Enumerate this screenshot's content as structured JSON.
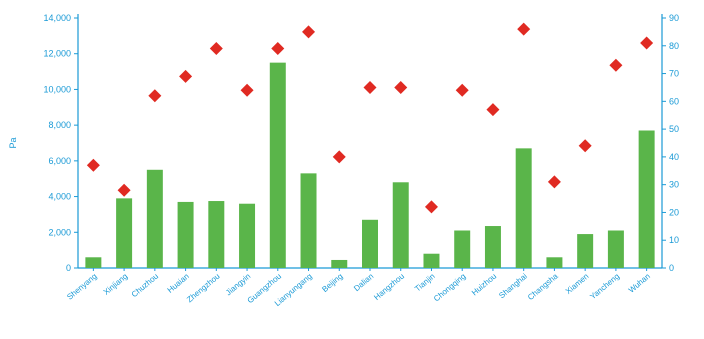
{
  "chart_data": {
    "type": "bar",
    "title": "",
    "xlabel": "",
    "ylabel": "Pa",
    "ylabel_right": "",
    "categories": [
      "Shenyang",
      "Xinjiang",
      "Chuzhou",
      "Huaian",
      "Zhengzhou",
      "Jiangyin",
      "Guangzhou",
      "Lianyungang",
      "Beijing",
      "Dalian",
      "Hangzhou",
      "Tianjin",
      "Chongqing",
      "Huizhou",
      "Shanghai",
      "Changsha",
      "Xiamen",
      "Yancheng",
      "Wuhan"
    ],
    "ylim": [
      0,
      14000
    ],
    "yticks": [
      "0",
      "2,000",
      "4,000",
      "6,000",
      "8,000",
      "10,000",
      "12,000",
      "14,000"
    ],
    "y2lim": [
      0,
      90
    ],
    "y2ticks": [
      "0",
      "10",
      "20",
      "30",
      "40",
      "50",
      "60",
      "70",
      "80",
      "90"
    ],
    "grid": false,
    "series": [
      {
        "type": "bar",
        "axis": "left",
        "color": "#5ab54a",
        "values": [
          600,
          3900,
          5500,
          3700,
          3750,
          3600,
          11500,
          5300,
          450,
          2700,
          4800,
          800,
          2100,
          2350,
          6700,
          600,
          1900,
          2100,
          7700
        ]
      },
      {
        "type": "scatter",
        "axis": "right",
        "marker": "diamond",
        "color": "#e02a22",
        "values": [
          37,
          28,
          62,
          69,
          79,
          64,
          79,
          85,
          40,
          65,
          65,
          22,
          64,
          57,
          86,
          31,
          44,
          73,
          81
        ]
      }
    ],
    "axis_color": "#1a9ad6"
  }
}
